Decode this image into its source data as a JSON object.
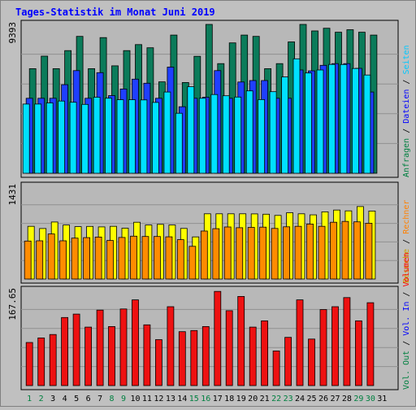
{
  "title": "Tages-Statistik im Monat Juni 2019",
  "colors": {
    "title": "#0000ff",
    "background": "#c0c0c0",
    "plot_bg": "#b8b8b8",
    "anfragen": "#0b7b5a",
    "dateien": "#1f3fff",
    "seiten": "#00e0ff",
    "besuche": "#ffff00",
    "rechner": "#ff8c00",
    "volumen": "#ee1111",
    "weekend_label": "#008040",
    "weekday_label": "#000000"
  },
  "right_legend": {
    "top": [
      {
        "text": "Anfragen",
        "color": "#008040"
      },
      {
        "text": "Dateien",
        "color": "#0000ff"
      },
      {
        "text": "Seiten",
        "color": "#00c8ff"
      }
    ],
    "middle": [
      {
        "text": "Besuche",
        "color": "#c8a000"
      },
      {
        "text": "Rechner",
        "color": "#ff8000"
      }
    ],
    "bottom": [
      {
        "text": "Vol. Out",
        "color": "#008040"
      },
      {
        "text": "Vol. In",
        "color": "#0000ff"
      },
      {
        "text": "Volumen",
        "color": "#ff0000"
      }
    ],
    "separator": " / "
  },
  "chart_data": [
    {
      "type": "bar",
      "panel": "requests",
      "max_label": "9393",
      "ylim": [
        0,
        9393
      ],
      "categories": [
        "1",
        "2",
        "3",
        "4",
        "5",
        "6",
        "7",
        "8",
        "9",
        "10",
        "11",
        "12",
        "13",
        "14",
        "15",
        "16",
        "17",
        "18",
        "19",
        "20",
        "21",
        "22",
        "23",
        "24",
        "25",
        "26",
        "27",
        "28",
        "29",
        "30"
      ],
      "weekend": [
        "1",
        "2",
        "8",
        "9",
        "15",
        "16",
        "22",
        "23",
        "29",
        "30"
      ],
      "series": [
        {
          "name": "Anfragen",
          "values": [
            6600,
            7390,
            6600,
            7740,
            8640,
            6600,
            8560,
            6780,
            7740,
            8120,
            7920,
            5770,
            8720,
            5730,
            7380,
            9393,
            6920,
            8230,
            8720,
            8640,
            6600,
            6920,
            8290,
            9393,
            8980,
            9150,
            8900,
            9060,
            8900,
            8720
          ]
        },
        {
          "name": "Dateien",
          "values": [
            4730,
            4730,
            4730,
            5590,
            6480,
            4730,
            6350,
            4900,
            5320,
            5940,
            5680,
            4730,
            6700,
            4200,
            4730,
            4800,
            6480,
            4730,
            5760,
            5850,
            5850,
            4730,
            4730,
            6520,
            6460,
            6810,
            6920,
            6920,
            6620,
            5130
          ]
        },
        {
          "name": "Seiten",
          "values": [
            4370,
            4370,
            4440,
            4560,
            4480,
            4350,
            4800,
            4740,
            4640,
            4640,
            4630,
            4470,
            5130,
            3790,
            5460,
            4730,
            4970,
            4890,
            4810,
            5200,
            4650,
            5150,
            6080,
            7220,
            6330,
            6520,
            6870,
            6860,
            6610,
            6200
          ]
        }
      ]
    },
    {
      "type": "bar",
      "panel": "visits",
      "max_label": "1431",
      "ylim": [
        0,
        1431
      ],
      "categories": [
        "1",
        "2",
        "3",
        "4",
        "5",
        "6",
        "7",
        "8",
        "9",
        "10",
        "11",
        "12",
        "13",
        "14",
        "15",
        "16",
        "17",
        "18",
        "19",
        "20",
        "21",
        "22",
        "23",
        "24",
        "25",
        "26",
        "27",
        "28",
        "29",
        "30"
      ],
      "series": [
        {
          "name": "Besuche",
          "values": [
            813,
            780,
            880,
            833,
            808,
            812,
            805,
            813,
            785,
            876,
            833,
            844,
            833,
            781,
            650,
            1007,
            1007,
            1007,
            1007,
            1005,
            1000,
            981,
            1023,
            1007,
            991,
            1037,
            1065,
            1052,
            1119,
            1050
          ]
        },
        {
          "name": "Rechner",
          "values": [
            586,
            590,
            695,
            590,
            631,
            639,
            648,
            595,
            641,
            662,
            657,
            657,
            652,
            608,
            504,
            740,
            777,
            803,
            792,
            797,
            801,
            781,
            806,
            813,
            849,
            814,
            876,
            889,
            883,
            861
          ]
        }
      ]
    },
    {
      "type": "bar",
      "panel": "volume",
      "max_label": "167.65",
      "ylim": [
        0,
        167.65
      ],
      "categories": [
        "1",
        "2",
        "3",
        "4",
        "5",
        "6",
        "7",
        "8",
        "9",
        "10",
        "11",
        "12",
        "13",
        "14",
        "15",
        "16",
        "17",
        "18",
        "19",
        "20",
        "21",
        "22",
        "23",
        "24",
        "25",
        "26",
        "27",
        "28",
        "29",
        "30"
      ],
      "series": [
        {
          "name": "Volumen",
          "values": [
            76,
            84,
            90,
            120,
            126,
            103,
            133,
            104,
            135,
            151,
            107,
            81,
            139,
            95,
            97,
            104,
            166,
            132,
            157,
            103,
            114,
            61,
            85,
            151,
            82,
            134,
            139,
            155,
            114,
            146
          ]
        }
      ]
    }
  ]
}
